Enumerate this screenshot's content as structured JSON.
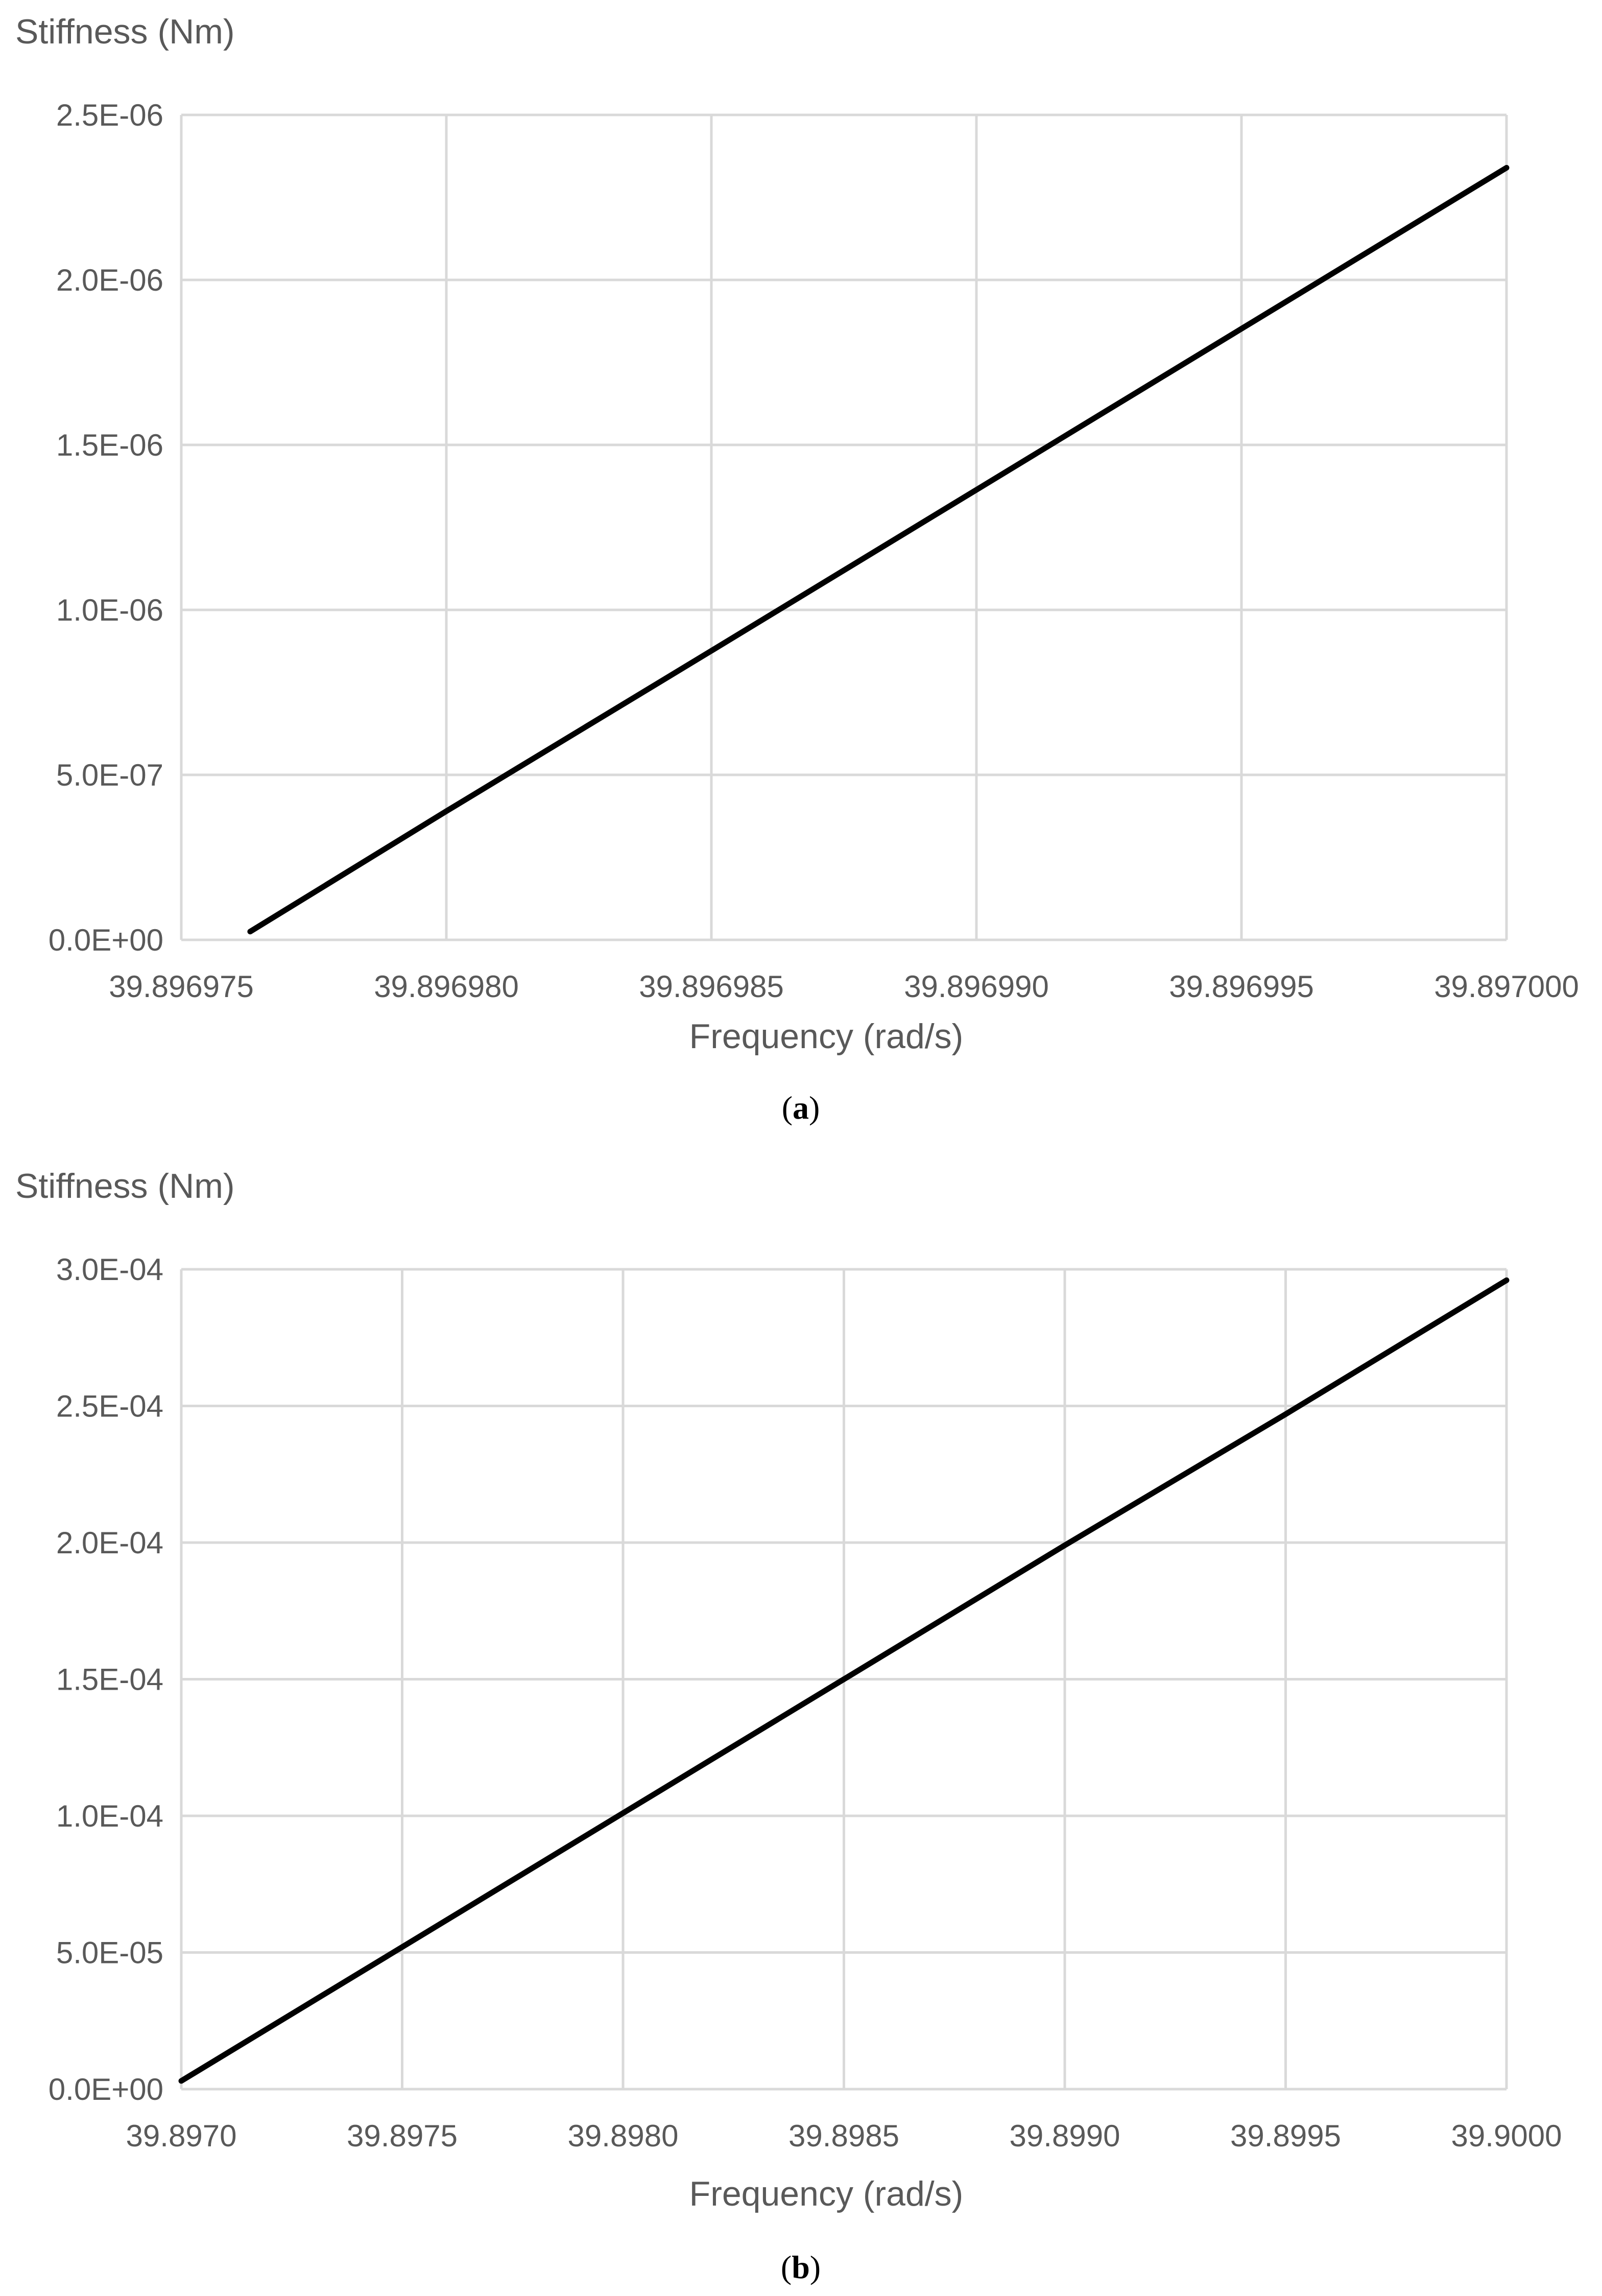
{
  "figure": {
    "panels": [
      {
        "caption_open": "(",
        "caption_letter": "a",
        "caption_close": ")",
        "ylabel": "Stiffness (Nm)",
        "xlabel": "Frequency (rad/s)"
      },
      {
        "caption_open": "(",
        "caption_letter": "b",
        "caption_close": ")",
        "ylabel": "Stiffness (Nm)",
        "xlabel": "Frequency (rad/s)"
      }
    ]
  },
  "chart_data": [
    {
      "type": "line",
      "title": "",
      "xlabel": "Frequency (rad/s)",
      "ylabel": "Stiffness (Nm)",
      "xlim": [
        39.896975,
        39.897
      ],
      "ylim": [
        0,
        2.5e-06
      ],
      "grid": true,
      "x_ticks": [
        39.896975,
        39.89698,
        39.896985,
        39.89699,
        39.896995,
        39.897
      ],
      "x_tick_labels": [
        "39.896975",
        "39.896980",
        "39.896985",
        "39.896990",
        "39.896995",
        "39.897000"
      ],
      "y_ticks": [
        0,
        5e-07,
        1e-06,
        1.5e-06,
        2e-06,
        2.5e-06
      ],
      "y_tick_labels": [
        "0.0E+00",
        "5.0E-07",
        "1.0E-06",
        "1.5E-06",
        "2.0E-06",
        "2.5E-06"
      ],
      "series": [
        {
          "color": "#000000",
          "x": [
            39.8969763,
            39.89698,
            39.896985,
            39.89699,
            39.896995,
            39.897
          ],
          "y": [
            2.5e-08,
            3.9e-07,
            8.76e-07,
            1.364e-06,
            1.852e-06,
            2.34e-06
          ]
        }
      ]
    },
    {
      "type": "line",
      "title": "",
      "xlabel": "Frequency (rad/s)",
      "ylabel": "Stiffness (Nm)",
      "xlim": [
        39.897,
        39.9
      ],
      "ylim": [
        0,
        0.0003
      ],
      "grid": true,
      "x_ticks": [
        39.897,
        39.8975,
        39.898,
        39.8985,
        39.899,
        39.8995,
        39.9
      ],
      "x_tick_labels": [
        "39.8970",
        "39.8975",
        "39.8980",
        "39.8985",
        "39.8990",
        "39.8995",
        "39.9000"
      ],
      "y_ticks": [
        0,
        5e-05,
        0.0001,
        0.00015,
        0.0002,
        0.00025,
        0.0003
      ],
      "y_tick_labels": [
        "0.0E+00",
        "5.0E-05",
        "1.0E-04",
        "1.5E-04",
        "2.0E-04",
        "2.5E-04",
        "3.0E-04"
      ],
      "series": [
        {
          "color": "#000000",
          "x": [
            39.897,
            39.8975,
            39.898,
            39.8985,
            39.899,
            39.8995,
            39.9
          ],
          "y": [
            3e-06,
            5.2e-05,
            0.000101,
            0.00015,
            0.000199,
            0.000247,
            0.000296
          ]
        }
      ]
    }
  ]
}
